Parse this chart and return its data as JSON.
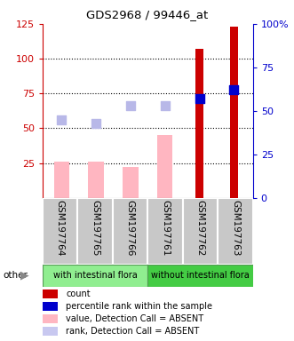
{
  "title": "GDS2968 / 99446_at",
  "samples": [
    "GSM197764",
    "GSM197765",
    "GSM197766",
    "GSM197761",
    "GSM197762",
    "GSM197763"
  ],
  "bar_pink_values": [
    26,
    26,
    22,
    45,
    null,
    null
  ],
  "bar_red_values": [
    null,
    null,
    null,
    null,
    107,
    123
  ],
  "dot_blue_values": [
    null,
    null,
    null,
    null,
    57,
    62
  ],
  "dot_lightblue_values": [
    45,
    43,
    53,
    53,
    null,
    null
  ],
  "ylim_left": [
    0,
    125
  ],
  "ylim_right": [
    0,
    100
  ],
  "left_ticks": [
    25,
    50,
    75,
    100,
    125
  ],
  "right_ticks": [
    0,
    25,
    50,
    75,
    100
  ],
  "right_tick_labels": [
    "0",
    "25",
    "50",
    "75",
    "100%"
  ],
  "left_tick_color": "#cc0000",
  "right_tick_color": "#0000cc",
  "group_label_left": "with intestinal flora",
  "group_label_right": "without intestinal flora",
  "group_bg_left": "#90EE90",
  "group_bg_right": "#44CC44",
  "other_label": "other",
  "legend_items": [
    {
      "color": "#cc0000",
      "label": "count"
    },
    {
      "color": "#0000cc",
      "label": "percentile rank within the sample"
    },
    {
      "color": "#ffb6c1",
      "label": "value, Detection Call = ABSENT"
    },
    {
      "color": "#c8c8f0",
      "label": "rank, Detection Call = ABSENT"
    }
  ],
  "sample_bg_color": "#c8c8c8",
  "dot_size": 55
}
